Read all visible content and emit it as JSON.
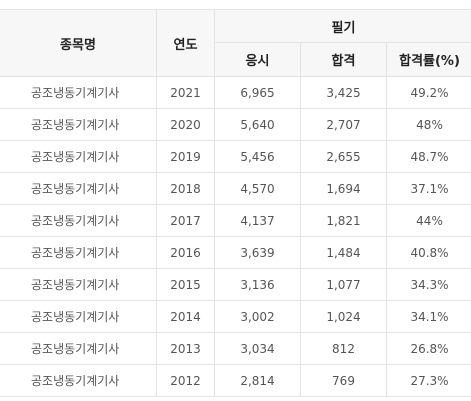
{
  "table": {
    "headers": {
      "name": "종목명",
      "year": "연도",
      "group": "필기",
      "applicants": "응시",
      "passed": "합격",
      "pass_rate": "합격률(%)"
    },
    "rows": [
      {
        "name": "공조냉동기계기사",
        "year": "2021",
        "applicants": "6,965",
        "passed": "3,425",
        "pass_rate": "49.2%"
      },
      {
        "name": "공조냉동기계기사",
        "year": "2020",
        "applicants": "5,640",
        "passed": "2,707",
        "pass_rate": "48%"
      },
      {
        "name": "공조냉동기계기사",
        "year": "2019",
        "applicants": "5,456",
        "passed": "2,655",
        "pass_rate": "48.7%"
      },
      {
        "name": "공조냉동기계기사",
        "year": "2018",
        "applicants": "4,570",
        "passed": "1,694",
        "pass_rate": "37.1%"
      },
      {
        "name": "공조냉동기계기사",
        "year": "2017",
        "applicants": "4,137",
        "passed": "1,821",
        "pass_rate": "44%"
      },
      {
        "name": "공조냉동기계기사",
        "year": "2016",
        "applicants": "3,639",
        "passed": "1,484",
        "pass_rate": "40.8%"
      },
      {
        "name": "공조냉동기계기사",
        "year": "2015",
        "applicants": "3,136",
        "passed": "1,077",
        "pass_rate": "34.3%"
      },
      {
        "name": "공조냉동기계기사",
        "year": "2014",
        "applicants": "3,002",
        "passed": "1,024",
        "pass_rate": "34.1%"
      },
      {
        "name": "공조냉동기계기사",
        "year": "2013",
        "applicants": "3,034",
        "passed": "812",
        "pass_rate": "26.8%"
      },
      {
        "name": "공조냉동기계기사",
        "year": "2012",
        "applicants": "2,814",
        "passed": "769",
        "pass_rate": "27.3%"
      }
    ]
  }
}
